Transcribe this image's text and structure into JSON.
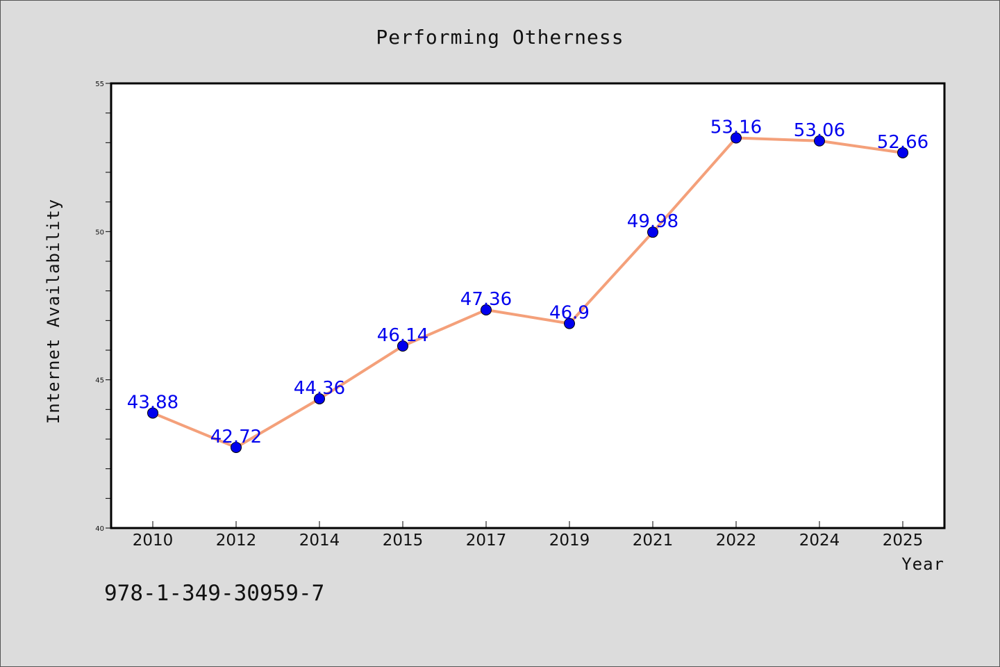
{
  "chart_data": {
    "type": "line",
    "title": "Performing Otherness",
    "xlabel": "Year",
    "ylabel": "Internet Availability",
    "categories": [
      "2010",
      "2012",
      "2014",
      "2015",
      "2017",
      "2019",
      "2021",
      "2022",
      "2024",
      "2025"
    ],
    "series": [
      {
        "values": [
          43.88,
          42.72,
          44.36,
          46.14,
          47.36,
          46.9,
          49.98,
          53.16,
          53.06,
          52.66
        ],
        "data_labels": [
          "43.88",
          "42.72",
          "44.36",
          "46.14",
          "47.36",
          "46.9",
          "49.98",
          "53.16",
          "53.06",
          "52.66"
        ]
      }
    ],
    "ylim": [
      40,
      55
    ],
    "yticks": [
      "40",
      "45",
      "50",
      "55"
    ],
    "grid": false,
    "legend": "none",
    "colors": {
      "line": "#f4a07a",
      "marker": "#0000ee",
      "data_label": "#0000ee",
      "plot_background": "#ffffff",
      "figure_background": "#dcdcdc"
    }
  },
  "footer": {
    "isbn": "978-1-349-30959-7"
  }
}
